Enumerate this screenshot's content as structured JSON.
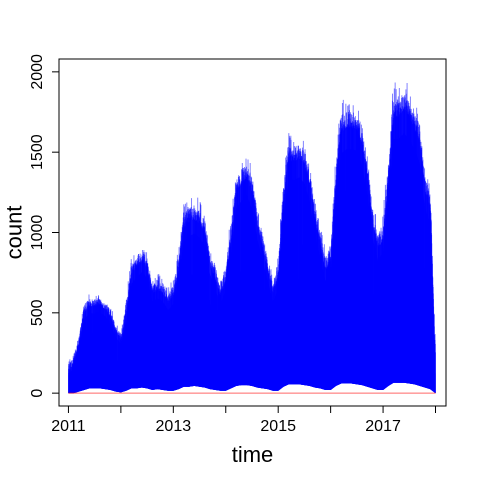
{
  "chart_data": {
    "type": "area",
    "xlabel": "time",
    "ylabel": "count",
    "xlim": [
      2010.82,
      2018.2
    ],
    "ylim": [
      -80,
      2080
    ],
    "x_start": 2011.0,
    "x_end": 2018.0,
    "x_ticks": [
      2011,
      2012,
      2013,
      2014,
      2015,
      2016,
      2017,
      2018
    ],
    "x_tick_labels": [
      "2011",
      "",
      "2013",
      "",
      "2015",
      "",
      "2017",
      ""
    ],
    "y_ticks": [
      0,
      500,
      1000,
      1500,
      2000
    ],
    "y_tick_labels": [
      "0",
      "500",
      "1000",
      "1500",
      "2000"
    ],
    "grid": false,
    "series": [
      {
        "color": "#0000ff",
        "envelope_x": [
          2011.0,
          2011.1,
          2011.2,
          2011.3,
          2011.4,
          2011.5,
          2011.6,
          2011.7,
          2011.8,
          2011.9,
          2012.0,
          2012.1,
          2012.2,
          2012.3,
          2012.4,
          2012.5,
          2012.6,
          2012.7,
          2012.8,
          2012.9,
          2013.0,
          2013.1,
          2013.2,
          2013.3,
          2013.4,
          2013.5,
          2013.6,
          2013.7,
          2013.8,
          2013.9,
          2014.0,
          2014.1,
          2014.2,
          2014.3,
          2014.4,
          2014.5,
          2014.6,
          2014.7,
          2014.8,
          2014.9,
          2015.0,
          2015.1,
          2015.2,
          2015.3,
          2015.4,
          2015.5,
          2015.6,
          2015.7,
          2015.8,
          2015.9,
          2016.0,
          2016.1,
          2016.2,
          2016.3,
          2016.4,
          2016.5,
          2016.6,
          2016.7,
          2016.8,
          2016.9,
          2017.0,
          2017.1,
          2017.2,
          2017.3,
          2017.4,
          2017.5,
          2017.6,
          2017.7,
          2017.8,
          2017.9,
          2018.0
        ],
        "envelope_max": [
          220,
          280,
          380,
          600,
          620,
          610,
          620,
          590,
          560,
          450,
          400,
          600,
          850,
          900,
          960,
          880,
          720,
          750,
          720,
          650,
          740,
          900,
          1200,
          1220,
          1250,
          1200,
          1150,
          900,
          820,
          700,
          860,
          1100,
          1400,
          1460,
          1500,
          1400,
          1200,
          1050,
          880,
          720,
          860,
          1400,
          1620,
          1600,
          1610,
          1580,
          1450,
          1200,
          1050,
          900,
          1000,
          1500,
          1850,
          1820,
          1800,
          1800,
          1700,
          1500,
          1200,
          1050,
          1150,
          1500,
          1980,
          1900,
          1960,
          1920,
          1800,
          1750,
          1400,
          1300,
          300
        ],
        "envelope_typ": [
          120,
          180,
          300,
          500,
          540,
          540,
          550,
          520,
          470,
          380,
          330,
          480,
          740,
          780,
          820,
          780,
          620,
          640,
          620,
          560,
          600,
          760,
          1020,
          1060,
          1080,
          1050,
          1000,
          800,
          700,
          600,
          700,
          940,
          1250,
          1300,
          1340,
          1250,
          1050,
          900,
          760,
          620,
          700,
          1200,
          1450,
          1440,
          1460,
          1420,
          1300,
          1080,
          920,
          760,
          820,
          1280,
          1620,
          1650,
          1650,
          1640,
          1540,
          1340,
          1050,
          900,
          950,
          1300,
          1720,
          1720,
          1760,
          1720,
          1640,
          1560,
          1250,
          1150,
          200
        ],
        "envelope_min": [
          0,
          0,
          10,
          20,
          30,
          30,
          30,
          25,
          20,
          10,
          5,
          15,
          30,
          30,
          35,
          30,
          20,
          25,
          20,
          15,
          15,
          25,
          40,
          40,
          45,
          40,
          35,
          25,
          20,
          15,
          15,
          30,
          45,
          50,
          50,
          45,
          35,
          30,
          25,
          15,
          15,
          40,
          55,
          55,
          55,
          50,
          45,
          35,
          30,
          20,
          20,
          45,
          60,
          60,
          60,
          55,
          50,
          40,
          30,
          20,
          20,
          45,
          65,
          65,
          65,
          60,
          55,
          45,
          35,
          25,
          0
        ]
      }
    ]
  }
}
